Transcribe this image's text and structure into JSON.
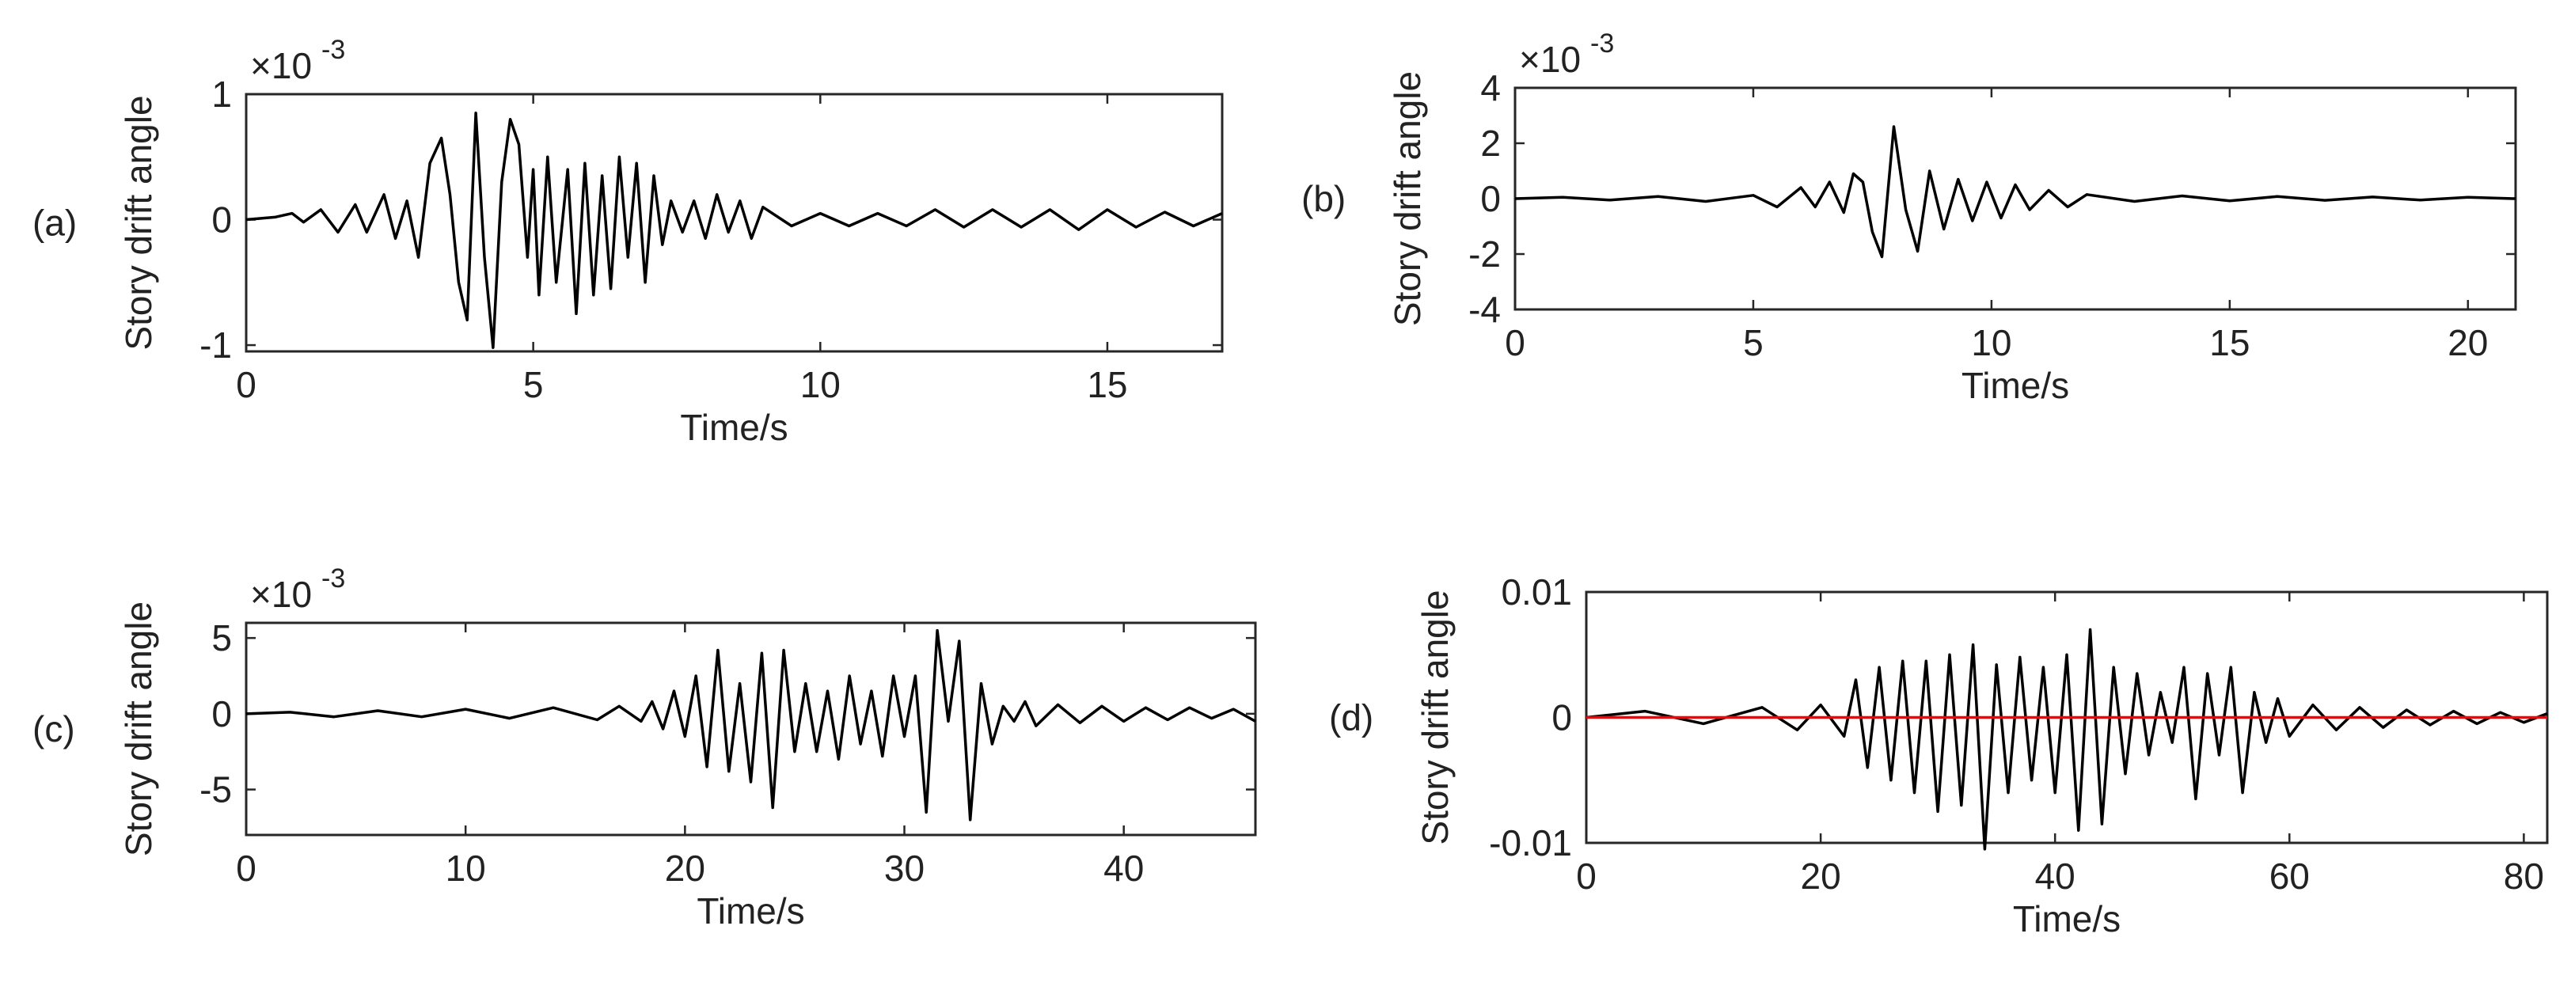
{
  "chart_data": [
    {
      "id": "a",
      "type": "line",
      "panel_label": "(a)",
      "xlabel": "Time/s",
      "ylabel": "Story drift angle",
      "exponent_label": "×10",
      "exponent_power": "-3",
      "xlim": [
        0,
        17
      ],
      "ylim": [
        -1.05,
        1.0
      ],
      "xticks": [
        0,
        5,
        10,
        15
      ],
      "yticks": [
        -1,
        0,
        1
      ],
      "ytick_labels": [
        "-1",
        "0",
        "1"
      ],
      "grid": false,
      "series": [
        {
          "color": "#000000",
          "x": [
            0,
            0.5,
            0.8,
            1.0,
            1.3,
            1.6,
            1.9,
            2.1,
            2.4,
            2.6,
            2.8,
            3.0,
            3.2,
            3.4,
            3.55,
            3.7,
            3.85,
            4.0,
            4.15,
            4.3,
            4.45,
            4.6,
            4.75,
            4.9,
            5.0,
            5.1,
            5.25,
            5.4,
            5.6,
            5.75,
            5.9,
            6.05,
            6.2,
            6.35,
            6.5,
            6.65,
            6.8,
            6.95,
            7.1,
            7.25,
            7.4,
            7.6,
            7.8,
            8.0,
            8.2,
            8.4,
            8.6,
            8.8,
            9.0,
            9.5,
            10.0,
            10.5,
            11.0,
            11.5,
            12.0,
            12.5,
            13.0,
            13.5,
            14.0,
            14.5,
            15.0,
            15.5,
            16.0,
            16.5,
            17.0
          ],
          "y": [
            0.0,
            0.02,
            0.05,
            -0.02,
            0.08,
            -0.1,
            0.12,
            -0.1,
            0.2,
            -0.15,
            0.15,
            -0.3,
            0.45,
            0.65,
            0.2,
            -0.5,
            -0.8,
            0.85,
            -0.3,
            -1.02,
            0.3,
            0.8,
            0.6,
            -0.3,
            0.4,
            -0.6,
            0.5,
            -0.5,
            0.4,
            -0.75,
            0.45,
            -0.6,
            0.35,
            -0.55,
            0.5,
            -0.3,
            0.45,
            -0.5,
            0.35,
            -0.2,
            0.15,
            -0.1,
            0.15,
            -0.15,
            0.2,
            -0.1,
            0.15,
            -0.15,
            0.1,
            -0.05,
            0.05,
            -0.05,
            0.05,
            -0.05,
            0.08,
            -0.06,
            0.08,
            -0.06,
            0.08,
            -0.08,
            0.08,
            -0.06,
            0.06,
            -0.05,
            0.05
          ]
        }
      ]
    },
    {
      "id": "b",
      "type": "line",
      "panel_label": "(b)",
      "xlabel": "Time/s",
      "ylabel": "Story drift angle",
      "exponent_label": "×10",
      "exponent_power": "-3",
      "xlim": [
        0,
        21
      ],
      "ylim": [
        -4,
        4
      ],
      "xticks": [
        0,
        5,
        10,
        15,
        20
      ],
      "yticks": [
        -4,
        -2,
        0,
        2,
        4
      ],
      "ytick_labels": [
        "-4",
        "-2",
        "0",
        "2",
        "4"
      ],
      "grid": false,
      "series": [
        {
          "color": "#000000",
          "x": [
            0,
            1,
            2,
            3,
            4,
            5,
            5.5,
            6.0,
            6.3,
            6.6,
            6.9,
            7.1,
            7.3,
            7.5,
            7.7,
            7.95,
            8.2,
            8.45,
            8.7,
            9.0,
            9.3,
            9.6,
            9.9,
            10.2,
            10.5,
            10.8,
            11.2,
            11.6,
            12.0,
            13,
            14,
            15,
            16,
            17,
            18,
            19,
            20,
            21
          ],
          "y": [
            0.0,
            0.05,
            -0.05,
            0.08,
            -0.1,
            0.12,
            -0.3,
            0.4,
            -0.3,
            0.6,
            -0.5,
            0.9,
            0.6,
            -1.2,
            -2.1,
            2.6,
            -0.4,
            -1.9,
            1.0,
            -1.1,
            0.7,
            -0.8,
            0.6,
            -0.7,
            0.5,
            -0.4,
            0.3,
            -0.3,
            0.15,
            -0.1,
            0.1,
            -0.08,
            0.08,
            -0.06,
            0.06,
            -0.05,
            0.05,
            0.0
          ]
        }
      ]
    },
    {
      "id": "c",
      "type": "line",
      "panel_label": "(c)",
      "xlabel": "Time/s",
      "ylabel": "Story drift angle",
      "exponent_label": "×10",
      "exponent_power": "-3",
      "xlim": [
        0,
        46
      ],
      "ylim": [
        -8,
        6
      ],
      "xticks": [
        0,
        10,
        20,
        30,
        40
      ],
      "yticks": [
        -5,
        0,
        5
      ],
      "ytick_labels": [
        "-5",
        "0",
        "5"
      ],
      "grid": false,
      "series": [
        {
          "color": "#000000",
          "x": [
            0,
            2,
            4,
            6,
            8,
            10,
            12,
            14,
            16,
            17,
            18,
            18.5,
            19,
            19.5,
            20,
            20.5,
            21,
            21.5,
            22,
            22.5,
            23,
            23.5,
            24,
            24.5,
            25,
            25.5,
            26,
            26.5,
            27,
            27.5,
            28,
            28.5,
            29,
            29.5,
            30,
            30.5,
            31,
            31.5,
            32,
            32.5,
            33,
            33.5,
            34,
            34.5,
            35,
            35.5,
            36,
            37,
            38,
            39,
            40,
            41,
            42,
            43,
            44,
            45,
            46
          ],
          "y": [
            0.0,
            0.1,
            -0.2,
            0.2,
            -0.2,
            0.3,
            -0.3,
            0.4,
            -0.4,
            0.5,
            -0.5,
            0.8,
            -1.0,
            1.5,
            -1.5,
            2.5,
            -3.5,
            4.2,
            -3.8,
            2.0,
            -4.5,
            4.0,
            -6.2,
            4.2,
            -2.5,
            2.0,
            -2.5,
            1.5,
            -3.0,
            2.5,
            -2.0,
            1.5,
            -2.8,
            2.5,
            -1.5,
            2.5,
            -6.5,
            5.5,
            -0.5,
            4.8,
            -7.0,
            2.0,
            -2.0,
            0.5,
            -0.5,
            0.8,
            -0.8,
            0.6,
            -0.6,
            0.5,
            -0.5,
            0.4,
            -0.4,
            0.4,
            -0.3,
            0.3,
            -0.5
          ]
        }
      ]
    },
    {
      "id": "d",
      "type": "line",
      "panel_label": "(d)",
      "xlabel": "Time/s",
      "ylabel": "Story drift angle",
      "xlim": [
        0,
        82
      ],
      "ylim": [
        -0.01,
        0.01
      ],
      "xticks": [
        0,
        20,
        40,
        60,
        80
      ],
      "yticks": [
        -0.01,
        0,
        0.01
      ],
      "ytick_labels": [
        "-0.01",
        "0",
        "0.01"
      ],
      "grid": false,
      "series": [
        {
          "color": "#000000",
          "x": [
            0,
            5,
            10,
            15,
            18,
            20,
            22,
            23,
            24,
            25,
            26,
            27,
            28,
            29,
            30,
            31,
            32,
            33,
            34,
            35,
            36,
            37,
            38,
            39,
            40,
            41,
            42,
            43,
            44,
            45,
            46,
            47,
            48,
            49,
            50,
            51,
            52,
            53,
            54,
            55,
            56,
            57,
            58,
            59,
            60,
            62,
            64,
            66,
            68,
            70,
            72,
            74,
            76,
            78,
            80,
            82
          ],
          "y": [
            0.0,
            0.0005,
            -0.0005,
            0.0008,
            -0.001,
            0.001,
            -0.0015,
            0.003,
            -0.004,
            0.004,
            -0.005,
            0.0045,
            -0.006,
            0.0045,
            -0.0075,
            0.005,
            -0.007,
            0.0058,
            -0.0105,
            0.0042,
            -0.006,
            0.0048,
            -0.005,
            0.004,
            -0.006,
            0.005,
            -0.009,
            0.007,
            -0.0085,
            0.004,
            -0.0045,
            0.0035,
            -0.003,
            0.002,
            -0.002,
            0.004,
            -0.0065,
            0.0035,
            -0.003,
            0.004,
            -0.006,
            0.002,
            -0.002,
            0.0015,
            -0.0015,
            0.001,
            -0.001,
            0.0008,
            -0.0008,
            0.0006,
            -0.0006,
            0.0005,
            -0.0005,
            0.0004,
            -0.0004,
            0.0003
          ]
        },
        {
          "color": "#ff0000",
          "x": [
            0,
            82
          ],
          "y": [
            0.0,
            0.0
          ]
        }
      ]
    }
  ]
}
